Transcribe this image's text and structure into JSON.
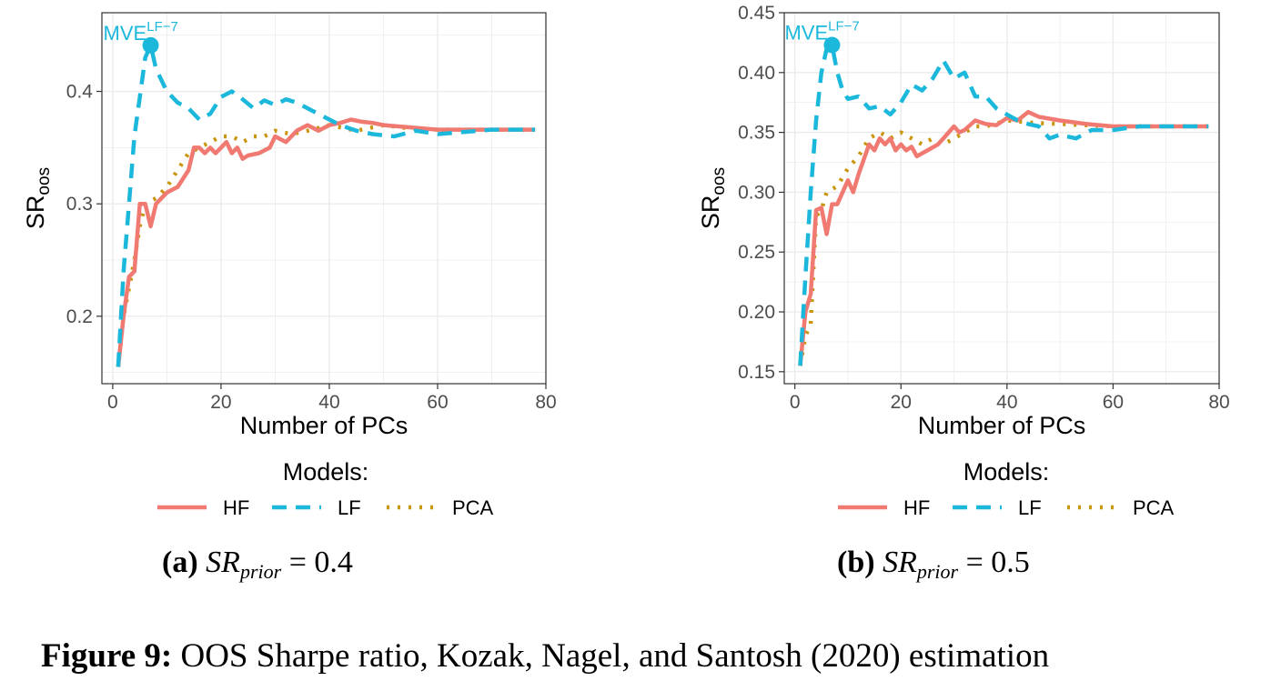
{
  "figure": {
    "label": "Figure 9:",
    "text": "OOS Sharpe ratio, Kozak, Nagel, and Santosh (2020) estimation"
  },
  "legend": {
    "title": "Models:",
    "entries": [
      "HF",
      "LF",
      "PCA"
    ]
  },
  "colors": {
    "HF": "#F07A72",
    "LF": "#1CB8DC",
    "PCA": "#C9950B",
    "grid": "#EBEBEB",
    "axis": "#333333"
  },
  "chart_data": [
    {
      "type": "line",
      "panel_label": "(a)",
      "caption_symbol": "SR",
      "caption_subscript": "prior",
      "caption_rhs": "= 0.4",
      "xlabel": "Number of PCs",
      "ylabel": "SR",
      "ylabel_subscript": "oos",
      "xlim": [
        -2,
        80
      ],
      "ylim": [
        0.14,
        0.47
      ],
      "xticks": [
        0,
        20,
        40,
        60,
        80
      ],
      "yticks": [
        0.2,
        0.3,
        0.4
      ],
      "ytick_labels": [
        "0.2",
        "0.3",
        "0.4"
      ],
      "grid": true,
      "annotation": {
        "text": "MVE",
        "superscript": "LF−7",
        "x": 7,
        "y": 0.441
      },
      "series": [
        {
          "name": "HF",
          "style": "solid",
          "points": [
            [
              1,
              0.155
            ],
            [
              2,
              0.2
            ],
            [
              3,
              0.235
            ],
            [
              4,
              0.24
            ],
            [
              5,
              0.3
            ],
            [
              6,
              0.3
            ],
            [
              7,
              0.28
            ],
            [
              8,
              0.3
            ],
            [
              10,
              0.31
            ],
            [
              12,
              0.315
            ],
            [
              14,
              0.33
            ],
            [
              15,
              0.35
            ],
            [
              16,
              0.35
            ],
            [
              17,
              0.345
            ],
            [
              18,
              0.35
            ],
            [
              19,
              0.345
            ],
            [
              20,
              0.35
            ],
            [
              21,
              0.355
            ],
            [
              22,
              0.345
            ],
            [
              23,
              0.35
            ],
            [
              24,
              0.34
            ],
            [
              25,
              0.343
            ],
            [
              27,
              0.345
            ],
            [
              29,
              0.35
            ],
            [
              30,
              0.36
            ],
            [
              32,
              0.355
            ],
            [
              34,
              0.365
            ],
            [
              36,
              0.37
            ],
            [
              38,
              0.365
            ],
            [
              40,
              0.37
            ],
            [
              42,
              0.372
            ],
            [
              44,
              0.375
            ],
            [
              46,
              0.373
            ],
            [
              48,
              0.372
            ],
            [
              50,
              0.37
            ],
            [
              55,
              0.368
            ],
            [
              60,
              0.366
            ],
            [
              65,
              0.366
            ],
            [
              70,
              0.366
            ],
            [
              78,
              0.366
            ]
          ]
        },
        {
          "name": "LF",
          "style": "dashed",
          "points": [
            [
              1,
              0.155
            ],
            [
              2,
              0.24
            ],
            [
              3,
              0.3
            ],
            [
              4,
              0.36
            ],
            [
              5,
              0.395
            ],
            [
              6,
              0.43
            ],
            [
              7,
              0.441
            ],
            [
              8,
              0.42
            ],
            [
              10,
              0.4
            ],
            [
              12,
              0.39
            ],
            [
              14,
              0.385
            ],
            [
              16,
              0.375
            ],
            [
              18,
              0.38
            ],
            [
              20,
              0.395
            ],
            [
              22,
              0.4
            ],
            [
              24,
              0.393
            ],
            [
              26,
              0.385
            ],
            [
              28,
              0.392
            ],
            [
              30,
              0.388
            ],
            [
              32,
              0.393
            ],
            [
              34,
              0.39
            ],
            [
              36,
              0.385
            ],
            [
              38,
              0.38
            ],
            [
              40,
              0.375
            ],
            [
              42,
              0.37
            ],
            [
              45,
              0.365
            ],
            [
              48,
              0.362
            ],
            [
              52,
              0.36
            ],
            [
              56,
              0.365
            ],
            [
              60,
              0.362
            ],
            [
              65,
              0.364
            ],
            [
              70,
              0.366
            ],
            [
              78,
              0.366
            ]
          ]
        },
        {
          "name": "PCA",
          "style": "dotted",
          "points": [
            [
              1,
              0.155
            ],
            [
              2,
              0.2
            ],
            [
              3,
              0.225
            ],
            [
              4,
              0.25
            ],
            [
              5,
              0.28
            ],
            [
              6,
              0.3
            ],
            [
              8,
              0.305
            ],
            [
              10,
              0.315
            ],
            [
              12,
              0.33
            ],
            [
              14,
              0.345
            ],
            [
              16,
              0.35
            ],
            [
              18,
              0.355
            ],
            [
              20,
              0.36
            ],
            [
              22,
              0.36
            ],
            [
              24,
              0.355
            ],
            [
              26,
              0.36
            ],
            [
              28,
              0.36
            ],
            [
              30,
              0.365
            ],
            [
              33,
              0.362
            ],
            [
              36,
              0.365
            ],
            [
              40,
              0.37
            ],
            [
              45,
              0.365
            ],
            [
              50,
              0.37
            ],
            [
              55,
              0.367
            ],
            [
              60,
              0.366
            ],
            [
              65,
              0.366
            ],
            [
              70,
              0.366
            ],
            [
              78,
              0.366
            ]
          ]
        }
      ]
    },
    {
      "type": "line",
      "panel_label": "(b)",
      "caption_symbol": "SR",
      "caption_subscript": "prior",
      "caption_rhs": "= 0.5",
      "xlabel": "Number of PCs",
      "ylabel": "SR",
      "ylabel_subscript": "oos",
      "xlim": [
        -2,
        80
      ],
      "ylim": [
        0.14,
        0.45
      ],
      "xticks": [
        0,
        20,
        40,
        60,
        80
      ],
      "yticks": [
        0.15,
        0.2,
        0.25,
        0.3,
        0.35,
        0.4,
        0.45
      ],
      "ytick_labels": [
        "0.15",
        "0.20",
        "0.25",
        "0.30",
        "0.35",
        "0.40",
        "0.45"
      ],
      "grid": true,
      "annotation": {
        "text": "MVE",
        "superscript": "LF−7",
        "x": 7,
        "y": 0.423
      },
      "series": [
        {
          "name": "HF",
          "style": "solid",
          "points": [
            [
              1,
              0.155
            ],
            [
              2,
              0.2
            ],
            [
              3,
              0.215
            ],
            [
              4,
              0.285
            ],
            [
              5,
              0.287
            ],
            [
              6,
              0.265
            ],
            [
              7,
              0.29
            ],
            [
              8,
              0.29
            ],
            [
              10,
              0.31
            ],
            [
              11,
              0.3
            ],
            [
              12,
              0.315
            ],
            [
              14,
              0.34
            ],
            [
              15,
              0.335
            ],
            [
              16,
              0.345
            ],
            [
              17,
              0.34
            ],
            [
              18,
              0.345
            ],
            [
              19,
              0.335
            ],
            [
              20,
              0.34
            ],
            [
              21,
              0.335
            ],
            [
              22,
              0.338
            ],
            [
              23,
              0.33
            ],
            [
              25,
              0.335
            ],
            [
              27,
              0.34
            ],
            [
              28,
              0.345
            ],
            [
              30,
              0.355
            ],
            [
              31,
              0.35
            ],
            [
              32,
              0.352
            ],
            [
              34,
              0.36
            ],
            [
              36,
              0.357
            ],
            [
              38,
              0.356
            ],
            [
              40,
              0.362
            ],
            [
              42,
              0.36
            ],
            [
              44,
              0.367
            ],
            [
              46,
              0.363
            ],
            [
              50,
              0.36
            ],
            [
              55,
              0.357
            ],
            [
              60,
              0.355
            ],
            [
              65,
              0.355
            ],
            [
              70,
              0.355
            ],
            [
              78,
              0.355
            ]
          ]
        },
        {
          "name": "LF",
          "style": "dashed",
          "points": [
            [
              1,
              0.155
            ],
            [
              2,
              0.23
            ],
            [
              3,
              0.3
            ],
            [
              4,
              0.36
            ],
            [
              5,
              0.4
            ],
            [
              6,
              0.42
            ],
            [
              7,
              0.423
            ],
            [
              8,
              0.4
            ],
            [
              9,
              0.385
            ],
            [
              10,
              0.378
            ],
            [
              12,
              0.38
            ],
            [
              14,
              0.37
            ],
            [
              16,
              0.372
            ],
            [
              18,
              0.365
            ],
            [
              20,
              0.375
            ],
            [
              22,
              0.39
            ],
            [
              24,
              0.385
            ],
            [
              26,
              0.395
            ],
            [
              28,
              0.41
            ],
            [
              30,
              0.395
            ],
            [
              32,
              0.4
            ],
            [
              34,
              0.38
            ],
            [
              36,
              0.38
            ],
            [
              38,
              0.37
            ],
            [
              40,
              0.365
            ],
            [
              42,
              0.36
            ],
            [
              44,
              0.357
            ],
            [
              46,
              0.355
            ],
            [
              48,
              0.345
            ],
            [
              50,
              0.348
            ],
            [
              53,
              0.345
            ],
            [
              56,
              0.352
            ],
            [
              60,
              0.352
            ],
            [
              65,
              0.355
            ],
            [
              70,
              0.355
            ],
            [
              78,
              0.355
            ]
          ]
        },
        {
          "name": "PCA",
          "style": "dotted",
          "points": [
            [
              1,
              0.155
            ],
            [
              2,
              0.18
            ],
            [
              3,
              0.19
            ],
            [
              4,
              0.28
            ],
            [
              5,
              0.285
            ],
            [
              6,
              0.3
            ],
            [
              8,
              0.305
            ],
            [
              10,
              0.32
            ],
            [
              12,
              0.33
            ],
            [
              14,
              0.345
            ],
            [
              16,
              0.35
            ],
            [
              18,
              0.345
            ],
            [
              20,
              0.35
            ],
            [
              22,
              0.345
            ],
            [
              24,
              0.34
            ],
            [
              26,
              0.345
            ],
            [
              28,
              0.34
            ],
            [
              30,
              0.345
            ],
            [
              32,
              0.35
            ],
            [
              34,
              0.355
            ],
            [
              36,
              0.355
            ],
            [
              40,
              0.36
            ],
            [
              45,
              0.358
            ],
            [
              50,
              0.357
            ],
            [
              55,
              0.356
            ],
            [
              60,
              0.355
            ],
            [
              65,
              0.355
            ],
            [
              70,
              0.355
            ],
            [
              78,
              0.355
            ]
          ]
        }
      ]
    }
  ]
}
